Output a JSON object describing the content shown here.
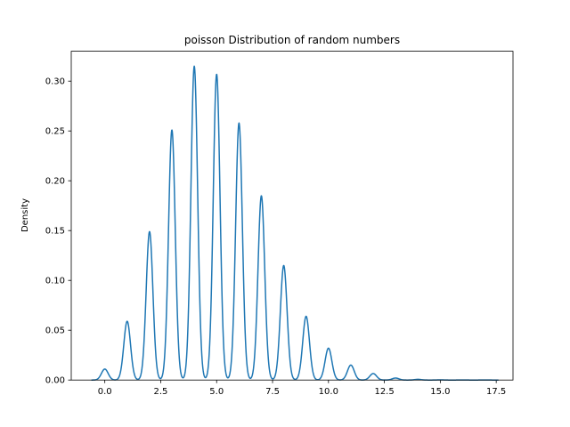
{
  "chart_data": {
    "type": "line",
    "title": "poisson Distribution of random numbers",
    "xlabel": "",
    "ylabel": "Density",
    "xlim": [
      -1.5,
      18.25
    ],
    "ylim": [
      0,
      0.33
    ],
    "grid": false,
    "x_ticks": [
      0.0,
      2.5,
      5.0,
      7.5,
      10.0,
      12.5,
      15.0,
      17.5
    ],
    "x_tick_labels": [
      "0.0",
      "2.5",
      "5.0",
      "7.5",
      "10.0",
      "12.5",
      "15.0",
      "17.5"
    ],
    "y_ticks": [
      0.0,
      0.05,
      0.1,
      0.15,
      0.2,
      0.25,
      0.3
    ],
    "y_tick_labels": [
      "0.00",
      "0.05",
      "0.10",
      "0.15",
      "0.20",
      "0.25",
      "0.30"
    ],
    "line_color": "#1f77b4",
    "kde_bandwidth": 0.15,
    "kde_range": [
      -0.6,
      17.6
    ],
    "peaks": [
      {
        "x": 0,
        "y": 0.011
      },
      {
        "x": 1,
        "y": 0.059
      },
      {
        "x": 2,
        "y": 0.149
      },
      {
        "x": 3,
        "y": 0.251
      },
      {
        "x": 4,
        "y": 0.315
      },
      {
        "x": 5,
        "y": 0.307
      },
      {
        "x": 6,
        "y": 0.258
      },
      {
        "x": 7,
        "y": 0.185
      },
      {
        "x": 8,
        "y": 0.115
      },
      {
        "x": 9,
        "y": 0.064
      },
      {
        "x": 10,
        "y": 0.032
      },
      {
        "x": 11,
        "y": 0.015
      },
      {
        "x": 12,
        "y": 0.0065
      },
      {
        "x": 13,
        "y": 0.002
      },
      {
        "x": 14,
        "y": 0.0007
      },
      {
        "x": 15,
        "y": 0.0002
      },
      {
        "x": 16,
        "y": 0.0001
      },
      {
        "x": 17,
        "y": 0.0001
      }
    ]
  }
}
